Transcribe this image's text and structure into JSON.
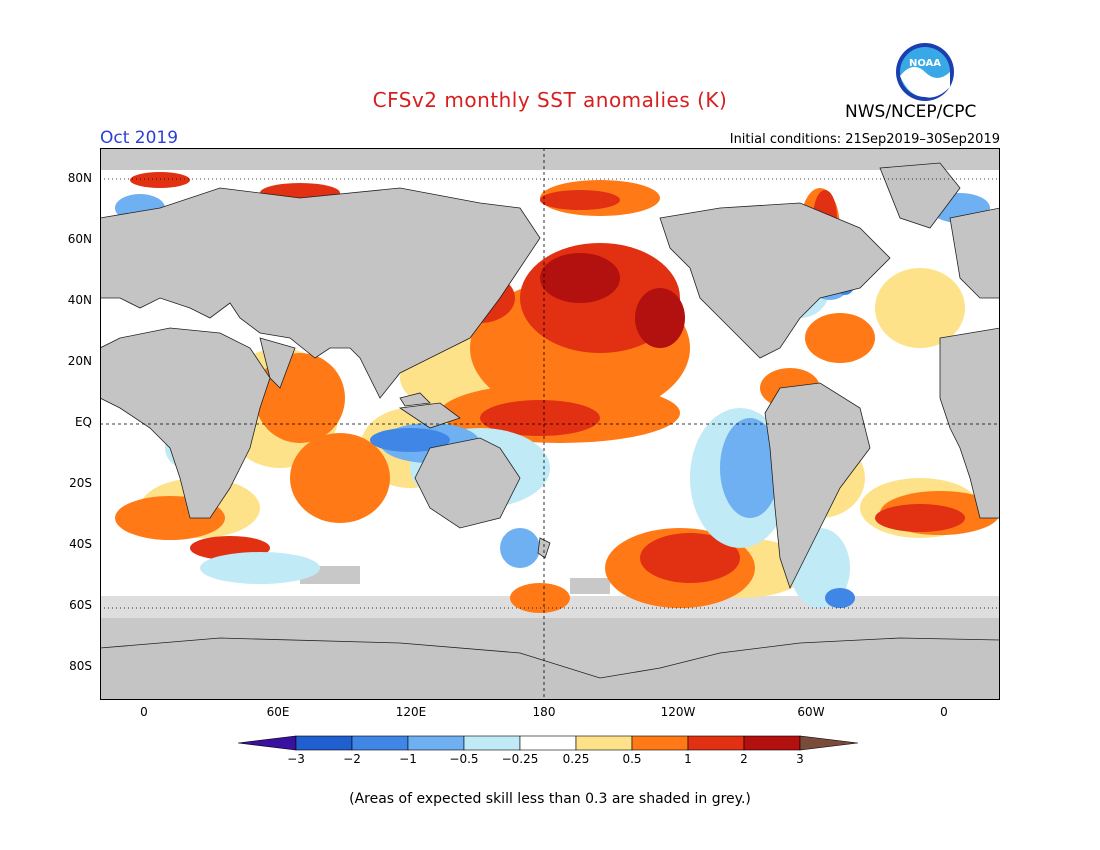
{
  "title": "CFSv2 monthly SST anomalies (K)",
  "month_label": "Oct 2019",
  "initial_conditions": "Initial conditions: 21Sep2019–30Sep2019",
  "agency": "NWS/NCEP/CPC",
  "logo_text": "NOAA",
  "footnote": "(Areas of expected skill less than 0.3 are shaded in grey.)",
  "lat_ticks": [
    "80N",
    "60N",
    "40N",
    "20N",
    "EQ",
    "20S",
    "40S",
    "60S",
    "80S"
  ],
  "lon_ticks": [
    "0",
    "60E",
    "120E",
    "180",
    "120W",
    "60W",
    "0"
  ],
  "colorbar": {
    "labels": [
      "−3",
      "−2",
      "−1",
      "−0.5",
      "−0.25",
      "0.25",
      "0.5",
      "1",
      "2",
      "3"
    ],
    "colors": [
      "#3a10a0",
      "#1f5fd0",
      "#3f86e6",
      "#6fb0f2",
      "#bfeaf6",
      "#ffffff",
      "#fde28a",
      "#ff7a16",
      "#e23012",
      "#b31010",
      "#7a4a3a"
    ]
  },
  "colors": {
    "land": "#c4c4c4",
    "ocean_neutral": "#ffffff",
    "grey_skill": "#c8c8c8",
    "title": "#d81e1e",
    "month": "#2b3fd6"
  }
}
